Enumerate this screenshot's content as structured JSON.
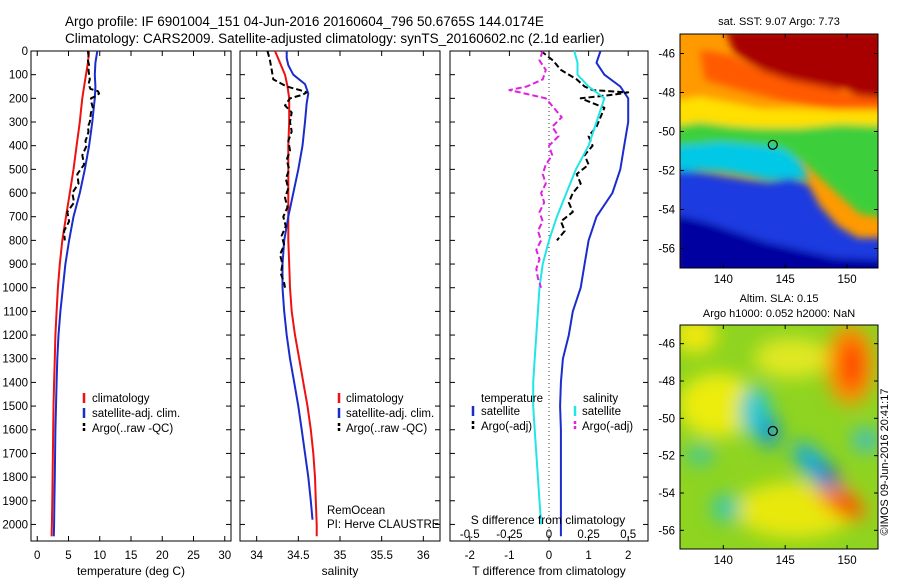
{
  "figure": {
    "title_line1": "Argo profile: IF 6901004_151 04-Jun-2016 20160604_796 50.6765S 144.0174E",
    "title_line2": "Climatology: CARS2009. Satellite-adjusted climatology: synTS_20160602.nc (2.1d earlier)",
    "credit": "©IMOS 09-Jun-2016 20:41:17",
    "remocean_line1": "RemOcean",
    "remocean_line2": "PI: Herve CLAUSTRE"
  },
  "colors": {
    "climatology": "#ee1111",
    "satellite": "#1a2ccc",
    "argo": "#000000",
    "cyan": "#22e6e6",
    "magenta": "#e020e0"
  },
  "chart_data": [
    {
      "type": "line",
      "xlabel": "temperature (deg C)",
      "ylabel": "",
      "xlim": [
        -1,
        31
      ],
      "ylim": [
        2070,
        0
      ],
      "xticks": [
        "0",
        "5",
        "10",
        "15",
        "20",
        "25",
        "30"
      ],
      "yticks": [
        "0",
        "100",
        "200",
        "300",
        "400",
        "500",
        "600",
        "700",
        "800",
        "900",
        "1000",
        "1100",
        "1200",
        "1300",
        "1400",
        "1500",
        "1600",
        "1700",
        "1800",
        "1900",
        "2000"
      ],
      "legend": [
        "climatology",
        "satellite-adj. clim.",
        "Argo(..raw -QC)"
      ],
      "series": [
        {
          "name": "climatology",
          "y": [
            0,
            50,
            100,
            150,
            200,
            250,
            300,
            400,
            500,
            600,
            700,
            800,
            900,
            1000,
            1100,
            1200,
            1300,
            1400,
            1500,
            1600,
            1700,
            1800,
            1900,
            2000,
            2050
          ],
          "x": [
            8.3,
            8.1,
            7.8,
            7.5,
            7.2,
            7.0,
            6.8,
            6.3,
            5.8,
            5.2,
            4.6,
            4.0,
            3.6,
            3.3,
            3.1,
            2.9,
            2.8,
            2.7,
            2.6,
            2.55,
            2.5,
            2.45,
            2.4,
            2.35,
            2.3
          ]
        },
        {
          "name": "satellite-adj. clim.",
          "y": [
            0,
            50,
            100,
            150,
            200,
            250,
            300,
            400,
            500,
            600,
            700,
            800,
            900,
            1000,
            1100,
            1200,
            1300,
            1400,
            1500,
            1600,
            1700,
            1800,
            1900,
            2000,
            2050
          ],
          "x": [
            9.6,
            9.3,
            9.2,
            9.3,
            9.2,
            9.0,
            8.8,
            8.3,
            7.6,
            6.8,
            5.8,
            5.1,
            4.5,
            4.1,
            3.7,
            3.4,
            3.2,
            3.1,
            3.0,
            2.9,
            2.85,
            2.8,
            2.75,
            2.7,
            2.65
          ]
        },
        {
          "name": "Argo(..raw -QC)",
          "y": [
            0,
            20,
            40,
            60,
            80,
            100,
            120,
            140,
            160,
            170,
            180,
            190,
            200,
            220,
            240,
            260,
            280,
            300,
            320,
            340,
            360,
            380,
            400,
            440,
            480,
            520,
            560,
            600,
            640,
            680,
            720,
            760,
            800
          ],
          "x": [
            8.1,
            8.2,
            8.1,
            8.3,
            8.2,
            8.3,
            8.4,
            8.2,
            8.5,
            9.7,
            9.9,
            9.4,
            8.6,
            8.7,
            8.9,
            8.6,
            8.5,
            8.4,
            8.1,
            8.2,
            8.0,
            7.7,
            7.9,
            7.2,
            7.5,
            6.4,
            6.6,
            5.6,
            5.9,
            4.8,
            5.1,
            4.3,
            4.4
          ]
        }
      ]
    },
    {
      "type": "line",
      "xlabel": "salinity",
      "ylabel": "",
      "xlim": [
        33.8,
        36.2
      ],
      "ylim": [
        2070,
        0
      ],
      "xticks": [
        "34",
        "34.5",
        "35",
        "35.5",
        "36"
      ],
      "legend": [
        "climatology",
        "satellite-adj. clim.",
        "Argo(..raw -QC)"
      ],
      "series": [
        {
          "name": "climatology",
          "y": [
            0,
            50,
            100,
            150,
            200,
            300,
            400,
            500,
            600,
            700,
            800,
            900,
            1000,
            1100,
            1200,
            1300,
            1400,
            1500,
            1600,
            1700,
            1800,
            1900,
            2000,
            2050
          ],
          "x": [
            34.22,
            34.28,
            34.34,
            34.37,
            34.39,
            34.39,
            34.38,
            34.38,
            34.38,
            34.38,
            34.38,
            34.39,
            34.4,
            34.42,
            34.46,
            34.51,
            34.56,
            34.61,
            34.65,
            34.68,
            34.7,
            34.71,
            34.72,
            34.72
          ]
        },
        {
          "name": "satellite-adj. clim.",
          "y": [
            0,
            30,
            60,
            100,
            140,
            180,
            220,
            300,
            400,
            500,
            600,
            700,
            800,
            900,
            1000,
            1100,
            1200,
            1300,
            1400,
            1500,
            1600,
            1700,
            1800,
            1900,
            1980
          ],
          "x": [
            34.36,
            34.36,
            34.38,
            34.44,
            34.58,
            34.62,
            34.6,
            34.58,
            34.55,
            34.5,
            34.44,
            34.38,
            34.33,
            34.31,
            34.31,
            34.33,
            34.36,
            34.4,
            34.45,
            34.5,
            34.54,
            34.58,
            34.62,
            34.65,
            34.67
          ]
        },
        {
          "name": "Argo(..raw -QC)",
          "y": [
            0,
            40,
            80,
            120,
            150,
            165,
            175,
            185,
            200,
            230,
            260,
            300,
            340,
            380,
            420,
            460,
            500,
            540,
            580,
            620,
            660,
            700,
            740,
            780,
            820,
            860,
            900,
            940,
            980,
            1000
          ],
          "x": [
            34.13,
            34.16,
            34.18,
            34.2,
            34.36,
            34.52,
            34.6,
            34.55,
            34.4,
            34.34,
            34.42,
            34.4,
            34.42,
            34.38,
            34.4,
            34.36,
            34.39,
            34.35,
            34.38,
            34.34,
            34.37,
            34.32,
            34.35,
            34.3,
            34.33,
            34.28,
            34.31,
            34.29,
            34.33,
            34.34
          ]
        }
      ]
    },
    {
      "type": "line",
      "xlabel": "T difference from climatology",
      "x2label": "S difference from climatology",
      "ylabel": "",
      "xlim": [
        -2.5,
        2.5
      ],
      "ylim": [
        2070,
        0
      ],
      "xticks": [
        "-2",
        "-1",
        "0",
        "1",
        "2"
      ],
      "x2ticks": [
        "-0.5",
        "-0.25",
        "0",
        "0.25",
        "0.5"
      ],
      "legend_titles": [
        "temperature",
        "salinity"
      ],
      "legend": [
        "satellite",
        "Argo(-adj)",
        "satellite",
        "Argo(-adj)"
      ],
      "series": [
        {
          "name": "satellite",
          "y": [
            0,
            50,
            100,
            150,
            200,
            300,
            400,
            500,
            600,
            700,
            800,
            900,
            1000,
            1100,
            1200,
            1300,
            1400,
            1500,
            1600,
            1700,
            1800,
            1900,
            2000,
            2050
          ],
          "x": [
            1.3,
            1.2,
            1.4,
            1.8,
            2.0,
            2.0,
            1.9,
            1.8,
            1.6,
            1.2,
            1.0,
            0.9,
            0.8,
            0.6,
            0.5,
            0.35,
            0.3,
            0.28,
            0.3,
            0.3,
            0.3,
            0.3,
            0.3,
            0.3
          ]
        },
        {
          "name": "Argo(-adj)",
          "y": [
            0,
            40,
            80,
            120,
            150,
            165,
            175,
            185,
            200,
            240,
            280,
            320,
            360,
            400,
            440,
            480,
            520,
            560,
            600,
            640,
            680,
            720,
            760,
            800
          ],
          "x": [
            -0.2,
            0.1,
            0.3,
            0.7,
            0.9,
            1.1,
            2.0,
            1.6,
            0.8,
            1.4,
            1.3,
            1.2,
            1.0,
            1.1,
            0.9,
            1.0,
            0.7,
            0.8,
            0.6,
            0.5,
            0.6,
            0.3,
            0.4,
            0.2
          ]
        },
        {
          "name": "satellite",
          "y": [
            0,
            50,
            100,
            150,
            200,
            300,
            400,
            500,
            600,
            700,
            800,
            900,
            1000,
            1100,
            1200,
            1300,
            1400,
            1500,
            1600,
            1700,
            1800,
            1900,
            2000
          ],
          "x": [
            0.16,
            0.18,
            0.18,
            0.25,
            0.35,
            0.3,
            0.25,
            0.17,
            0.11,
            0.05,
            0.0,
            -0.04,
            -0.06,
            -0.07,
            -0.08,
            -0.09,
            -0.1,
            -0.1,
            -0.09,
            -0.08,
            -0.07,
            -0.06,
            -0.05
          ]
        },
        {
          "name": "Argo(-adj)",
          "y": [
            0,
            40,
            80,
            120,
            150,
            165,
            180,
            200,
            240,
            280,
            320,
            360,
            400,
            440,
            480,
            520,
            560,
            600,
            640,
            680,
            720,
            760,
            800,
            840,
            880,
            920,
            960,
            1000
          ],
          "x": [
            -0.04,
            -0.06,
            -0.02,
            -0.04,
            -0.14,
            -0.25,
            -0.15,
            -0.02,
            0.03,
            0.08,
            0.02,
            0.06,
            0.0,
            0.02,
            -0.02,
            -0.04,
            -0.02,
            -0.05,
            -0.03,
            -0.06,
            -0.04,
            -0.07,
            -0.05,
            -0.08,
            -0.06,
            -0.08,
            -0.07,
            -0.05
          ]
        }
      ]
    },
    {
      "type": "heatmap",
      "title": "sat. SST: 9.07 Argo: 7.73",
      "xticks": [
        "140",
        "145",
        "150"
      ],
      "yticks": [
        "-46",
        "-48",
        "-50",
        "-52",
        "-54",
        "-56"
      ],
      "xlim": [
        136.5,
        152.5
      ],
      "ylim": [
        -57,
        -45
      ],
      "argo_position": [
        144.0,
        -50.68
      ]
    },
    {
      "type": "heatmap",
      "title_line1": "Altim. SLA: 0.15",
      "title_line2": "Argo h1000: 0.052 h2000: NaN",
      "xticks": [
        "140",
        "145",
        "150"
      ],
      "yticks": [
        "-46",
        "-48",
        "-50",
        "-52",
        "-54",
        "-56"
      ],
      "xlim": [
        136.5,
        152.5
      ],
      "ylim": [
        -57,
        -45
      ],
      "argo_position": [
        144.0,
        -50.68
      ]
    }
  ]
}
